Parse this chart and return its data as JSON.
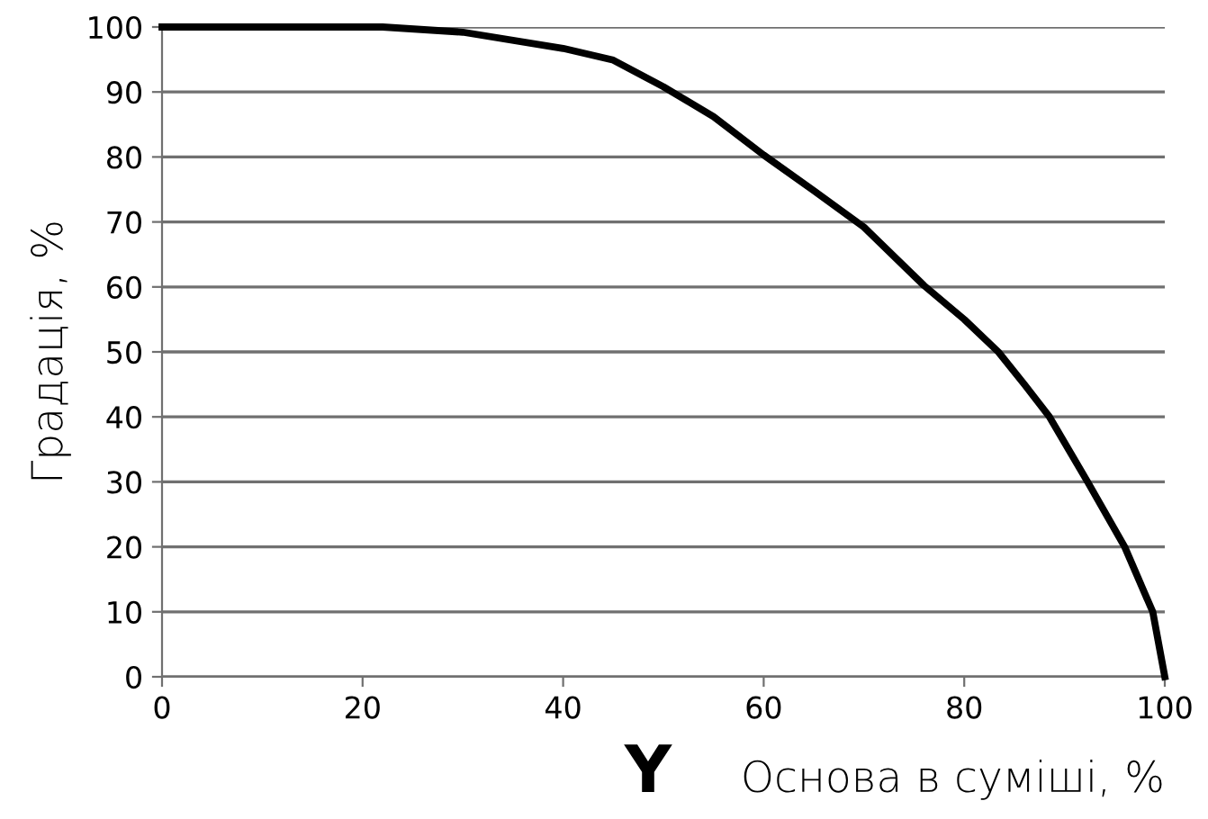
{
  "chart_data": {
    "type": "line",
    "xlabel": "Основа в суміші, %",
    "ylabel": "Градація, %",
    "annotations": [
      "Y"
    ],
    "x": [
      0,
      10,
      22,
      30,
      40,
      45,
      50,
      55,
      60,
      65,
      70,
      76,
      80,
      83.4,
      86,
      88.5,
      92.3,
      96,
      98.8,
      100
    ],
    "series": [
      {
        "color": "#000000",
        "values": [
          100,
          100,
          100,
          99.2,
          96.7,
          94.9,
          90.8,
          86.2,
          80.3,
          74.8,
          69.2,
          60.2,
          55,
          50,
          45,
          40,
          30,
          20,
          10,
          0
        ]
      }
    ],
    "xlim": [
      0,
      100
    ],
    "xticks": [
      0,
      20,
      40,
      60,
      80,
      100
    ],
    "ylim": [
      0,
      100
    ],
    "yticks": [
      0,
      10,
      20,
      30,
      40,
      50,
      60,
      70,
      80,
      90,
      100
    ],
    "grid": "y",
    "marker": "none",
    "line_style": "solid"
  }
}
